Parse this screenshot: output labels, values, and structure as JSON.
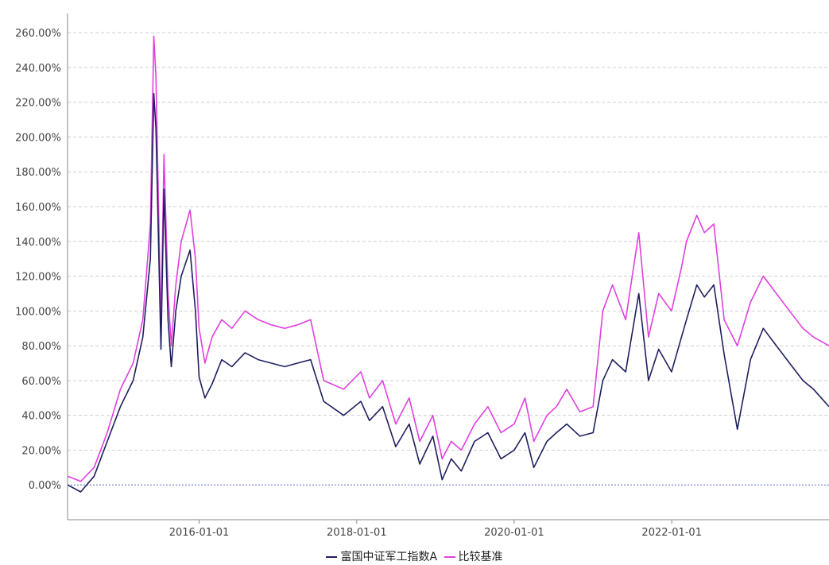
{
  "chart_data": {
    "type": "line",
    "title": "",
    "xlabel": "",
    "ylabel": "",
    "x_ticks": [
      "2016-01-01",
      "2018-01-01",
      "2020-01-01",
      "2022-01-01"
    ],
    "y_ticks": [
      "0.00%",
      "20.00%",
      "40.00%",
      "60.00%",
      "80.00%",
      "100.00%",
      "120.00%",
      "140.00%",
      "160.00%",
      "180.00%",
      "200.00%",
      "220.00%",
      "240.00%",
      "260.00%"
    ],
    "xlim": [
      "2014-05-01",
      "2023-12-31"
    ],
    "ylim": [
      -20,
      271
    ],
    "grid": "horizontal dashed",
    "legend_position": "bottom",
    "zero_line_color": "#5566cc",
    "series": [
      {
        "name": "富国中证军工指数A",
        "color": "#1f1f5f",
        "x": [
          "2014-05-01",
          "2014-07-01",
          "2014-09-01",
          "2014-11-01",
          "2015-01-01",
          "2015-03-01",
          "2015-04-15",
          "2015-05-20",
          "2015-06-05",
          "2015-06-15",
          "2015-07-08",
          "2015-07-22",
          "2015-08-10",
          "2015-08-25",
          "2015-09-15",
          "2015-10-10",
          "2015-11-20",
          "2015-12-15",
          "2016-01-01",
          "2016-01-28",
          "2016-03-01",
          "2016-04-15",
          "2016-06-01",
          "2016-08-01",
          "2016-10-01",
          "2016-12-01",
          "2017-02-01",
          "2017-04-01",
          "2017-06-01",
          "2017-08-01",
          "2017-11-01",
          "2018-01-20",
          "2018-03-01",
          "2018-05-01",
          "2018-07-01",
          "2018-09-01",
          "2018-10-20",
          "2018-12-20",
          "2019-02-01",
          "2019-03-15",
          "2019-05-01",
          "2019-07-01",
          "2019-09-01",
          "2019-11-01",
          "2020-01-01",
          "2020-02-20",
          "2020-04-01",
          "2020-06-01",
          "2020-07-15",
          "2020-09-01",
          "2020-11-01",
          "2021-01-01",
          "2021-02-15",
          "2021-04-01",
          "2021-06-01",
          "2021-08-01",
          "2021-09-15",
          "2021-11-01",
          "2021-12-31",
          "2022-02-15",
          "2022-03-10",
          "2022-04-27",
          "2022-06-01",
          "2022-07-15",
          "2022-09-01",
          "2022-11-01",
          "2023-01-01",
          "2023-03-01",
          "2023-05-01",
          "2023-07-01",
          "2023-09-01",
          "2023-10-20",
          "2023-12-31"
        ],
        "values": [
          0,
          -4,
          5,
          25,
          45,
          60,
          85,
          130,
          225,
          205,
          78,
          170,
          95,
          68,
          100,
          120,
          135,
          100,
          62,
          50,
          58,
          72,
          68,
          76,
          72,
          70,
          68,
          70,
          72,
          48,
          40,
          48,
          37,
          45,
          22,
          35,
          12,
          28,
          3,
          15,
          8,
          25,
          30,
          15,
          20,
          30,
          10,
          25,
          30,
          35,
          28,
          30,
          60,
          72,
          65,
          110,
          60,
          78,
          65,
          85,
          95,
          115,
          108,
          115,
          75,
          32,
          72,
          90,
          80,
          70,
          60,
          55,
          45
        ]
      },
      {
        "name": "比较基准",
        "color": "#e040e0",
        "x": [
          "2014-05-01",
          "2014-07-01",
          "2014-09-01",
          "2014-11-01",
          "2015-01-01",
          "2015-03-01",
          "2015-04-15",
          "2015-05-20",
          "2015-06-05",
          "2015-06-15",
          "2015-07-08",
          "2015-07-22",
          "2015-08-10",
          "2015-08-25",
          "2015-09-15",
          "2015-10-10",
          "2015-11-20",
          "2015-12-15",
          "2016-01-01",
          "2016-01-28",
          "2016-03-01",
          "2016-04-15",
          "2016-06-01",
          "2016-08-01",
          "2016-10-01",
          "2016-12-01",
          "2017-02-01",
          "2017-04-01",
          "2017-06-01",
          "2017-08-01",
          "2017-11-01",
          "2018-01-20",
          "2018-03-01",
          "2018-05-01",
          "2018-07-01",
          "2018-09-01",
          "2018-10-20",
          "2018-12-20",
          "2019-02-01",
          "2019-03-15",
          "2019-05-01",
          "2019-07-01",
          "2019-09-01",
          "2019-11-01",
          "2020-01-01",
          "2020-02-20",
          "2020-04-01",
          "2020-06-01",
          "2020-07-15",
          "2020-09-01",
          "2020-11-01",
          "2021-01-01",
          "2021-02-15",
          "2021-04-01",
          "2021-06-01",
          "2021-08-01",
          "2021-09-15",
          "2021-11-01",
          "2021-12-31",
          "2022-02-15",
          "2022-03-10",
          "2022-04-27",
          "2022-06-01",
          "2022-07-15",
          "2022-09-01",
          "2022-11-01",
          "2023-01-01",
          "2023-03-01",
          "2023-05-01",
          "2023-07-01",
          "2023-09-01",
          "2023-10-20",
          "2023-12-31"
        ],
        "values": [
          5,
          2,
          10,
          30,
          55,
          70,
          95,
          150,
          258,
          235,
          90,
          190,
          110,
          80,
          115,
          140,
          158,
          130,
          90,
          70,
          85,
          95,
          90,
          100,
          95,
          92,
          90,
          92,
          95,
          60,
          55,
          65,
          50,
          60,
          35,
          50,
          25,
          40,
          15,
          25,
          20,
          35,
          45,
          30,
          35,
          50,
          25,
          40,
          45,
          55,
          42,
          45,
          100,
          115,
          95,
          145,
          85,
          110,
          100,
          125,
          140,
          155,
          145,
          150,
          95,
          80,
          105,
          120,
          110,
          100,
          90,
          85,
          80
        ]
      }
    ]
  }
}
